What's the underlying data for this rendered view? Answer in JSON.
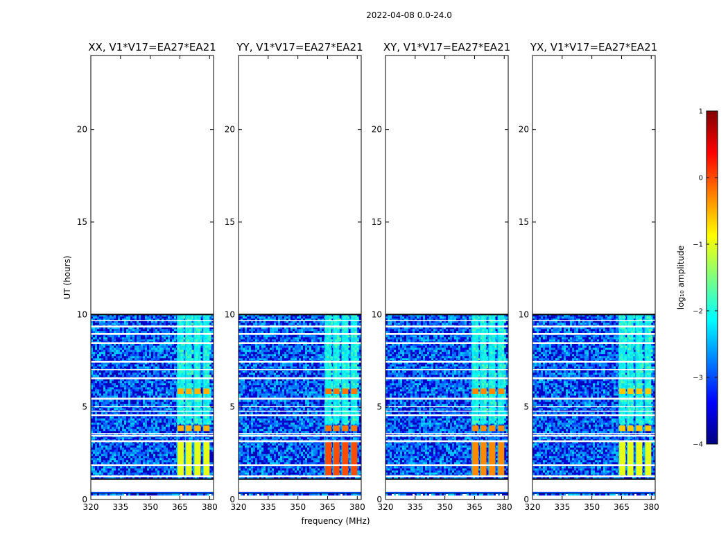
{
  "figure_title": "2022-04-08 0.0-24.0",
  "colors": {
    "jet": [
      "#00007f",
      "#0000ff",
      "#007fff",
      "#00ffff",
      "#7fff7f",
      "#ffff00",
      "#ff7f00",
      "#ff0000",
      "#7f0000"
    ]
  },
  "chart_data": {
    "type": "heatmap",
    "xlabel": "frequency (MHz)",
    "ylabel": "UT (hours)",
    "xlim": [
      320,
      382
    ],
    "ylim": [
      0,
      24
    ],
    "xticks": [
      320,
      335,
      350,
      365,
      380
    ],
    "yticks": [
      0,
      5,
      10,
      15,
      20
    ],
    "data_extent_hours": [
      0.3,
      10.0
    ],
    "rfi_bands_mhz": [
      [
        363.5,
        367.0
      ],
      [
        367.7,
        371.0
      ],
      [
        372.0,
        375.5
      ],
      [
        376.6,
        380.0
      ]
    ],
    "blank_gaps_hours": [
      [
        0.4,
        1.1
      ],
      [
        1.2,
        1.3
      ],
      [
        1.8,
        1.9
      ],
      [
        3.1,
        3.2
      ],
      [
        3.4,
        3.5
      ],
      [
        3.55,
        3.6
      ],
      [
        4.5,
        4.6
      ],
      [
        4.75,
        4.8
      ],
      [
        5.0,
        5.05
      ],
      [
        5.4,
        5.5
      ],
      [
        6.5,
        6.6
      ],
      [
        7.0,
        7.05
      ],
      [
        7.4,
        7.5
      ],
      [
        8.4,
        8.5
      ],
      [
        8.9,
        9.0
      ],
      [
        9.3,
        9.4
      ],
      [
        9.65,
        9.7
      ]
    ],
    "panels": [
      {
        "title": "XX, V1*V17=EA27*EA21",
        "band_level_low_ut": -1.0,
        "band_level_mid_ut": -0.5
      },
      {
        "title": "YY, V1*V17=EA27*EA21",
        "band_level_low_ut": 0.0,
        "band_level_mid_ut": -0.2
      },
      {
        "title": "XY, V1*V17=EA27*EA21",
        "band_level_low_ut": -0.3,
        "band_level_mid_ut": -0.3
      },
      {
        "title": "YX, V1*V17=EA27*EA21",
        "band_level_low_ut": -1.0,
        "band_level_mid_ut": -0.6
      }
    ],
    "colorbar": {
      "label": "log₁₀ amplitude",
      "range": [
        -4,
        1
      ],
      "ticks": [
        1,
        0,
        -1,
        -2,
        -3,
        -4
      ],
      "tick_labels": [
        "1",
        "0",
        "−1",
        "−2",
        "−3",
        "−4"
      ]
    }
  }
}
